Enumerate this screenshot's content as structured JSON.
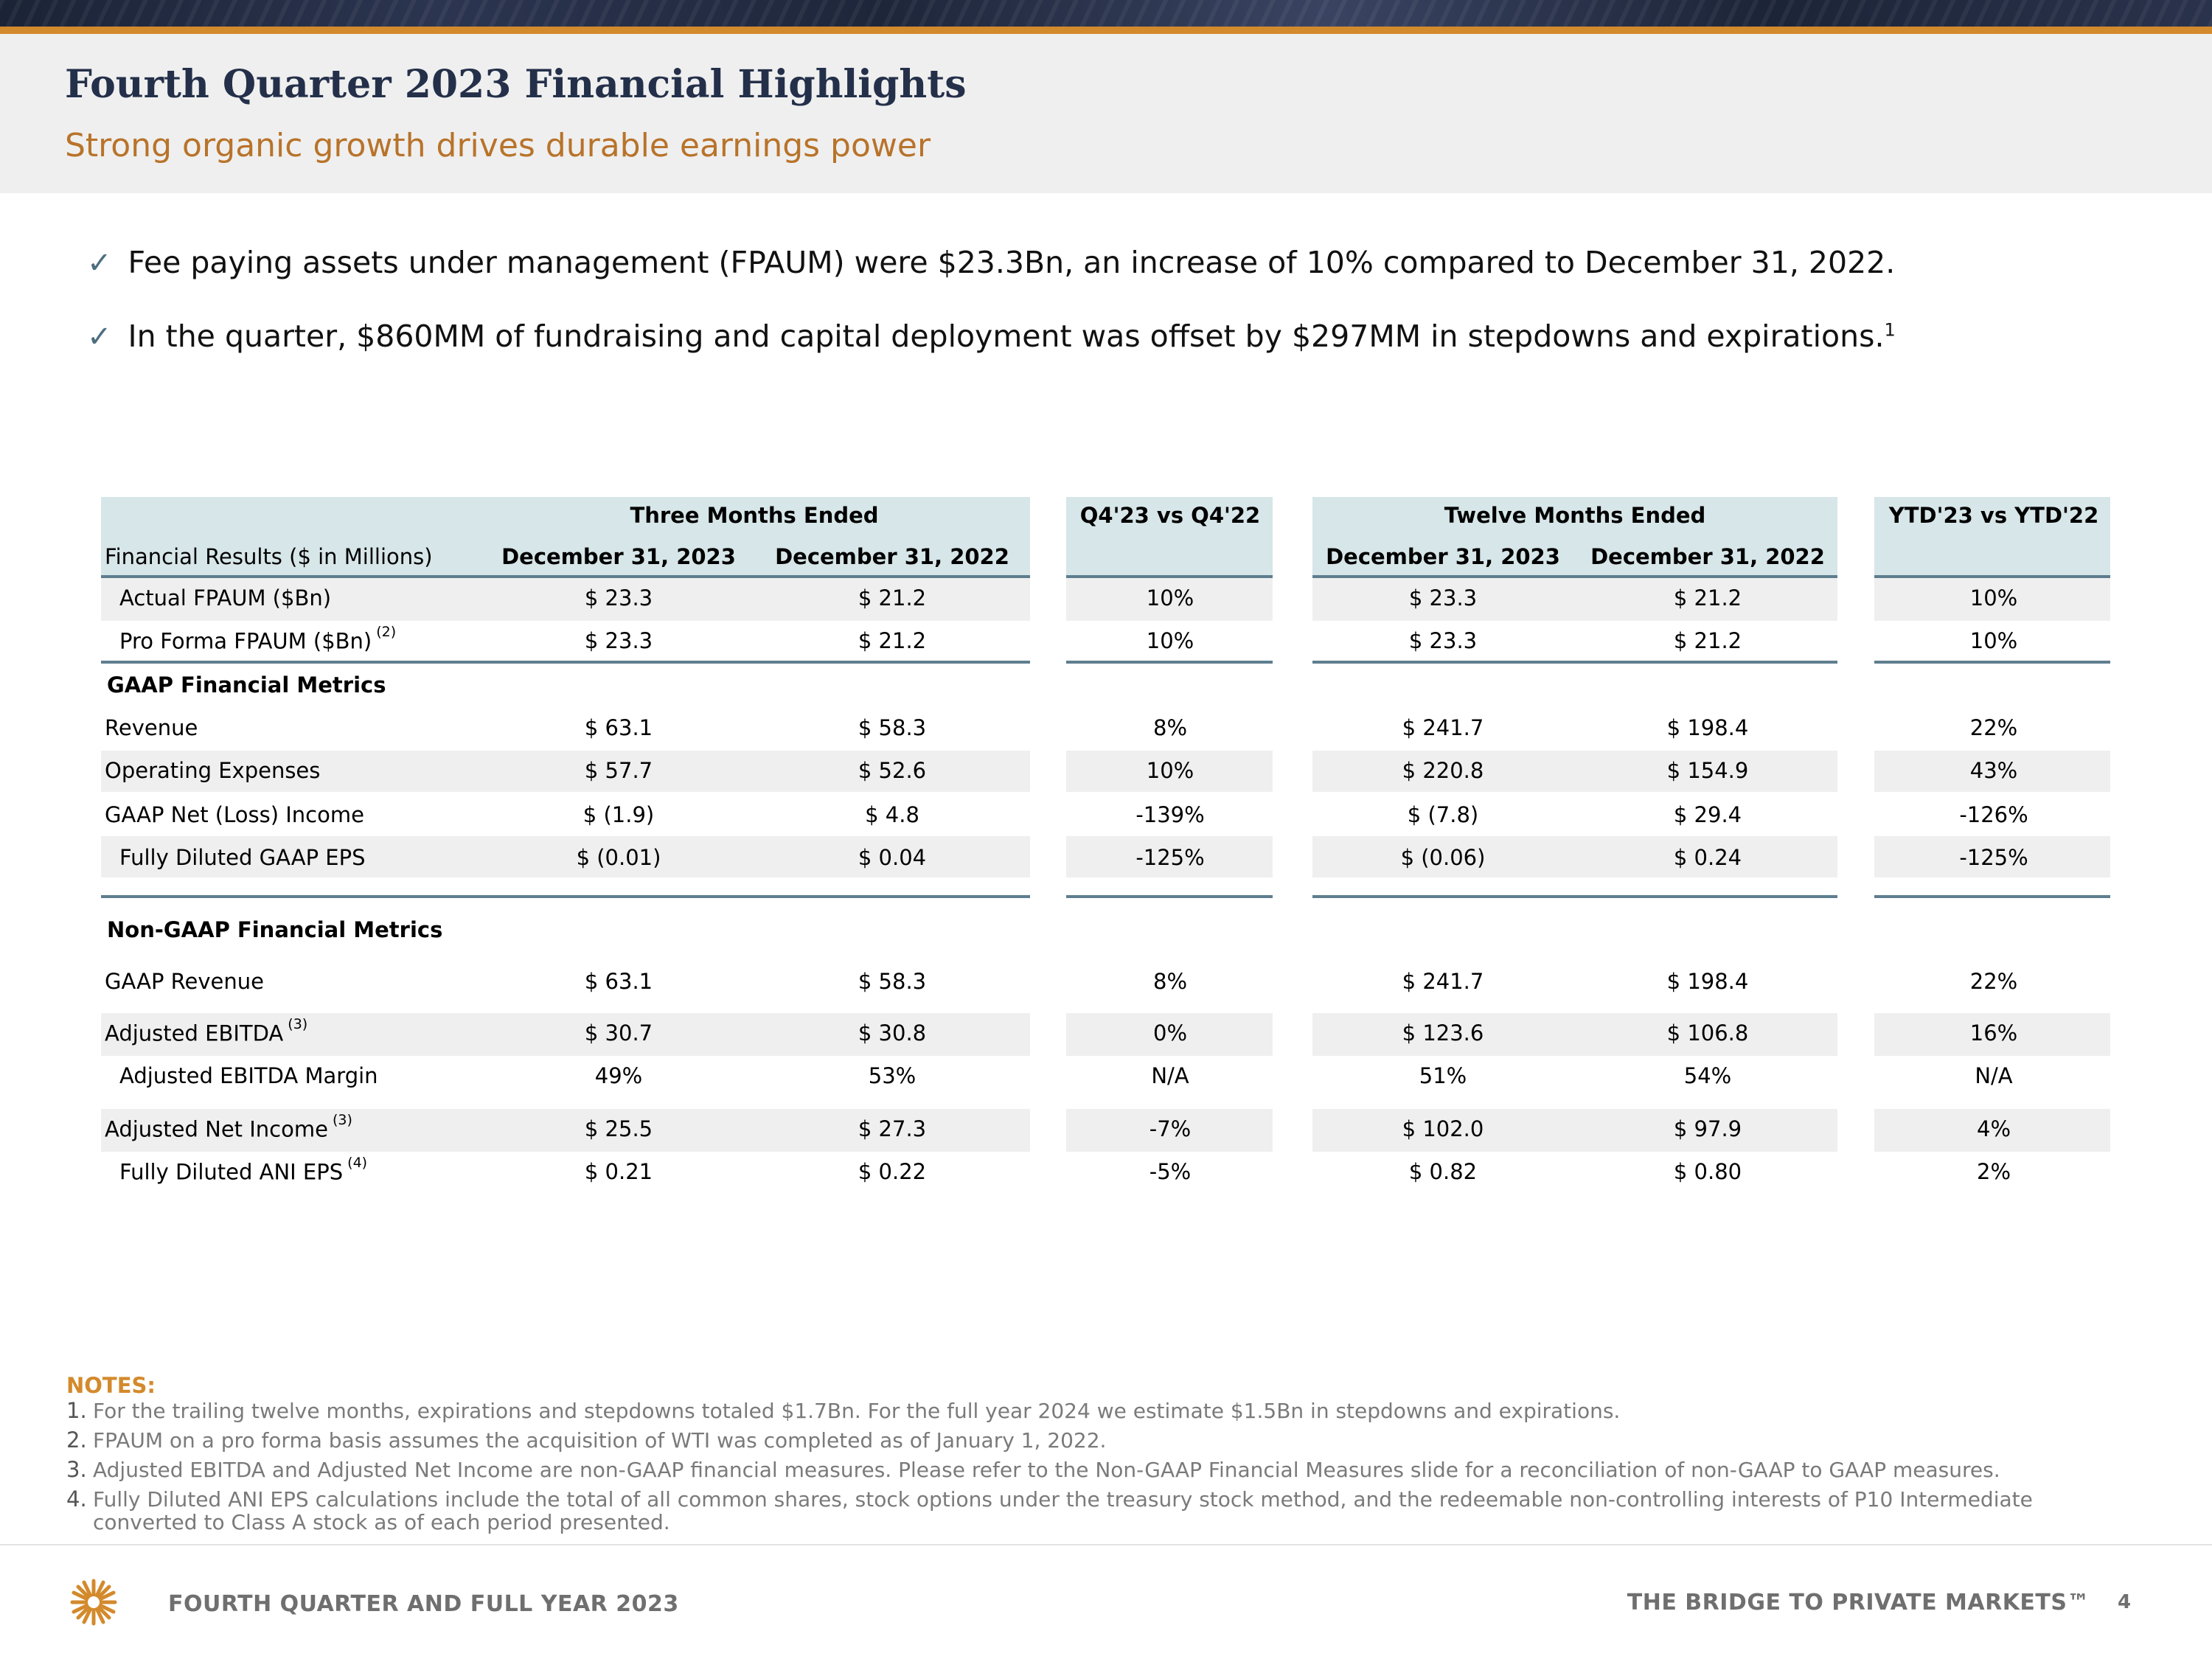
{
  "header": {
    "title": "Fourth Quarter 2023 Financial Highlights",
    "subtitle": "Strong organic growth drives durable earnings power"
  },
  "bullets": [
    {
      "icon": "check-icon",
      "text": "Fee paying assets under management (FPAUM) were $23.3Bn, an increase of 10% compared to December 31, 2022.",
      "sup": ""
    },
    {
      "icon": "check-icon",
      "text": "In the quarter, $860MM of fundraising and capital deployment was offset by $297MM in stepdowns and expirations.",
      "sup": "1"
    }
  ],
  "table": {
    "group_headers": {
      "three_months": "Three Months Ended",
      "q_vs_q": "Q4'23 vs Q4'22",
      "twelve_months": "Twelve Months Ended",
      "ytd_vs_ytd": "YTD'23 vs YTD'22"
    },
    "row_header_label": "Financial Results ($ in Millions)",
    "col_headers": [
      "December 31, 2023",
      "December 31, 2022",
      "December 31, 2023",
      "December 31, 2022"
    ],
    "section_gaap": "GAAP Financial Metrics",
    "section_nongaap": "Non-GAAP Financial Metrics",
    "rows": [
      {
        "label": "Actual FPAUM ($Bn)",
        "sup": "",
        "v": [
          "$ 23.3",
          "$ 21.2",
          "10%",
          "$ 23.3",
          "$ 21.2",
          "10%"
        ]
      },
      {
        "label": "Pro Forma FPAUM ($Bn)",
        "sup": "(2)",
        "v": [
          "$ 23.3",
          "$ 21.2",
          "10%",
          "$ 23.3",
          "$ 21.2",
          "10%"
        ]
      },
      {
        "label": "Revenue",
        "sup": "",
        "v": [
          "$ 63.1",
          "$ 58.3",
          "8%",
          "$ 241.7",
          "$ 198.4",
          "22%"
        ]
      },
      {
        "label": "Operating Expenses",
        "sup": "",
        "v": [
          "$ 57.7",
          "$ 52.6",
          "10%",
          "$ 220.8",
          "$ 154.9",
          "43%"
        ]
      },
      {
        "label": "GAAP Net (Loss) Income",
        "sup": "",
        "v": [
          "$ (1.9)",
          "$ 4.8",
          "-139%",
          "$ (7.8)",
          "$ 29.4",
          "-126%"
        ]
      },
      {
        "label": "Fully Diluted GAAP EPS",
        "sup": "",
        "v": [
          "$ (0.01)",
          "$ 0.04",
          "-125%",
          "$ (0.06)",
          "$ 0.24",
          "-125%"
        ]
      },
      {
        "label": "GAAP Revenue",
        "sup": "",
        "v": [
          "$ 63.1",
          "$ 58.3",
          "8%",
          "$ 241.7",
          "$ 198.4",
          "22%"
        ]
      },
      {
        "label": "Adjusted EBITDA",
        "sup": "(3)",
        "v": [
          "$ 30.7",
          "$ 30.8",
          "0%",
          "$ 123.6",
          "$ 106.8",
          "16%"
        ]
      },
      {
        "label": "Adjusted EBITDA Margin",
        "sup": "",
        "v": [
          "49%",
          "53%",
          "N/A",
          "51%",
          "54%",
          "N/A"
        ]
      },
      {
        "label": "Adjusted Net Income",
        "sup": "(3)",
        "v": [
          "$ 25.5",
          "$ 27.3",
          "-7%",
          "$ 102.0",
          "$ 97.9",
          "4%"
        ]
      },
      {
        "label": "Fully Diluted ANI EPS",
        "sup": "(4)",
        "v": [
          "$ 0.21",
          "$ 0.22",
          "-5%",
          "$ 0.82",
          "$ 0.80",
          "2%"
        ]
      }
    ]
  },
  "notes": {
    "title": "NOTES:",
    "items": [
      {
        "num": "1.",
        "text": "For the trailing twelve months, expirations and stepdowns totaled $1.7Bn. For the full year 2024 we estimate $1.5Bn in stepdowns and expirations."
      },
      {
        "num": "2.",
        "text": "FPAUM on a pro forma basis assumes the acquisition of WTI was completed as of January 1, 2022."
      },
      {
        "num": "3.",
        "text": "Adjusted EBITDA and Adjusted Net Income are non-GAAP financial measures. Please refer to the Non-GAAP Financial Measures slide for a reconciliation of non-GAAP to GAAP measures."
      },
      {
        "num": "4.",
        "text": "Fully Diluted ANI EPS calculations include the total of all common shares, stock options under the treasury stock method, and the redeemable non-controlling interests of P10 Intermediate"
      },
      {
        "num": "",
        "text": "converted to Class A stock as of each period presented."
      }
    ]
  },
  "footer": {
    "left": "FOURTH QUARTER AND FULL YEAR 2023",
    "right": "THE BRIDGE TO PRIVATE MARKETS™",
    "page": "4",
    "logo_icon": "p10-logo-icon"
  },
  "colors": {
    "accent": "#d38a2c",
    "title": "#24304a",
    "header_fill": "#d7e6e8",
    "rule": "#5e7e8f"
  }
}
